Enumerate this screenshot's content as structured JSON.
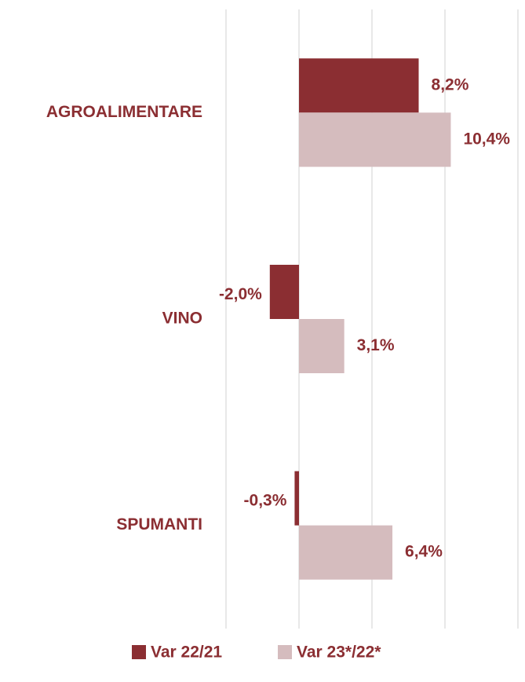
{
  "chart_data": {
    "type": "hbar",
    "categories": [
      "AGROALIMENTARE",
      "VINO",
      "SPUMANTI"
    ],
    "series": [
      {
        "name": "Var 22/21",
        "color": "#8b2e32",
        "values": [
          8.2,
          -2.0,
          -0.3
        ],
        "value_labels": [
          "8,2%",
          "-2,0%",
          "-0,3%"
        ]
      },
      {
        "name": "Var 23*/22*",
        "color": "#d5bcbe",
        "values": [
          10.4,
          3.1,
          6.4
        ],
        "value_labels": [
          "10,4%",
          "3,1%",
          "6,4%"
        ]
      }
    ],
    "xlim": [
      -5,
      15
    ],
    "xticks": [
      -5,
      0,
      5,
      10,
      15
    ],
    "grid": true,
    "legend": "bottom"
  }
}
